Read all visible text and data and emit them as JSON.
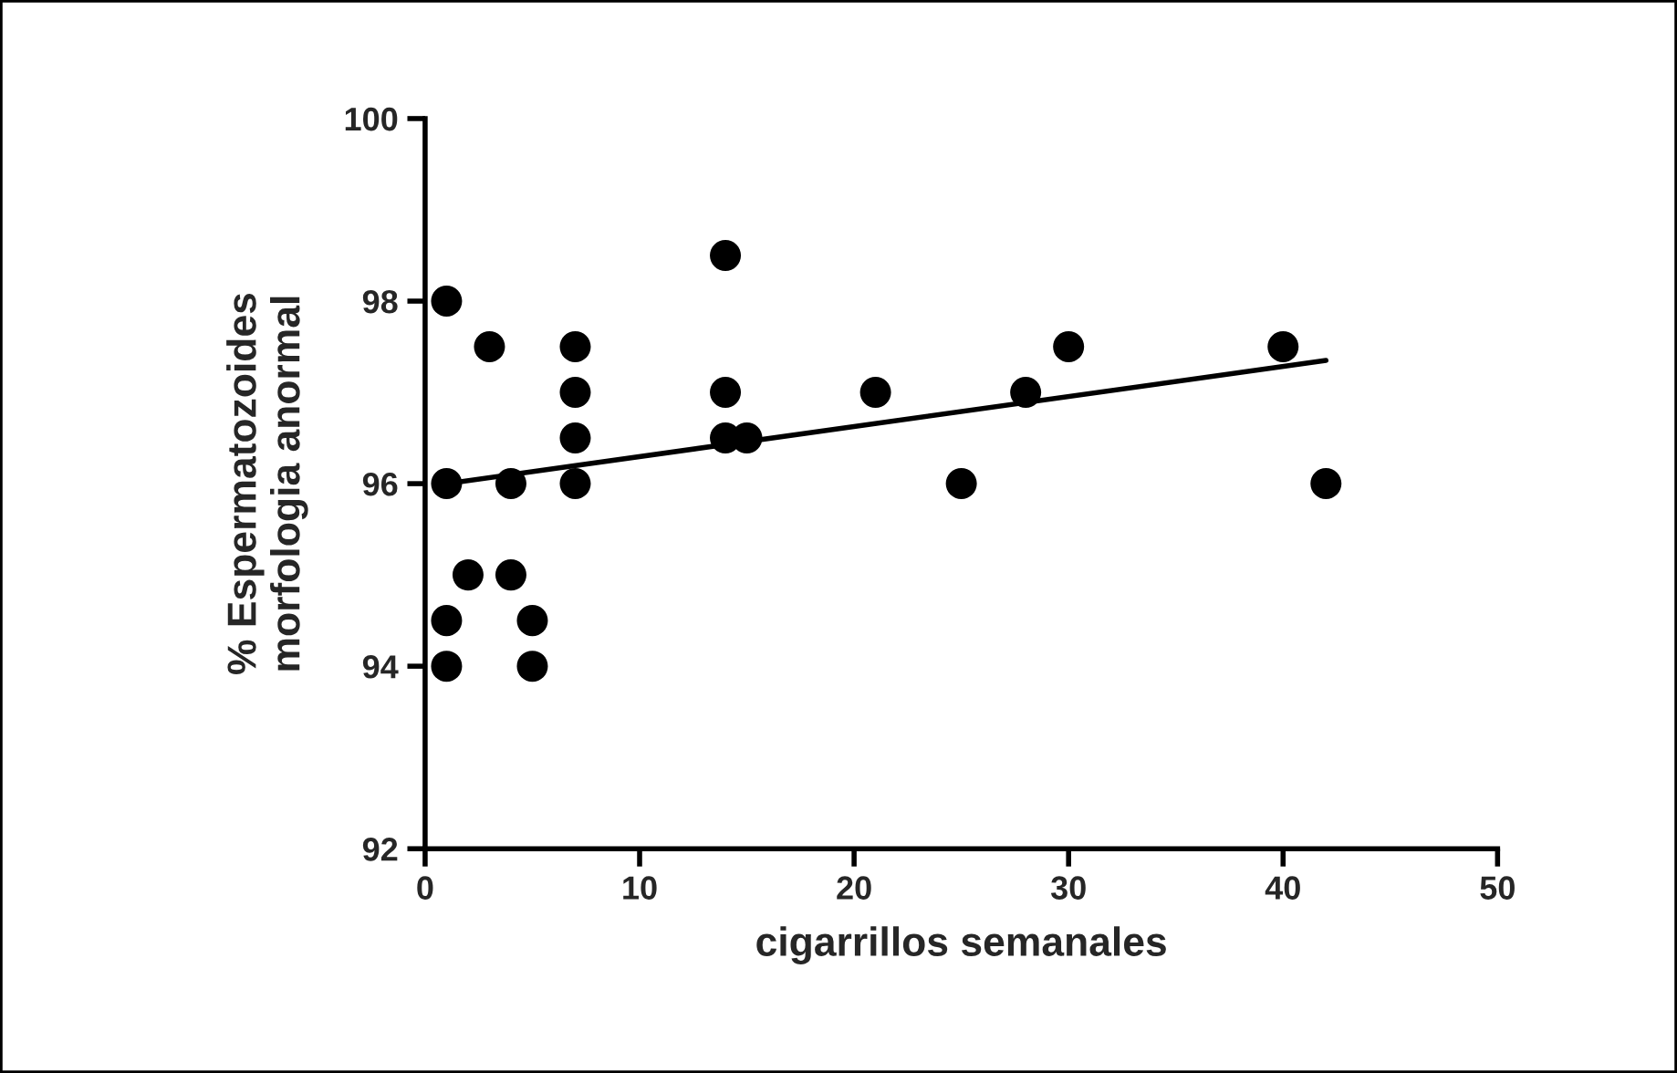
{
  "chart_data": {
    "type": "scatter",
    "xlabel": "cigarrillos semanales",
    "ylabel": "% Espermatozoides\nmorfologia anormal",
    "xlim": [
      0,
      50
    ],
    "xticks": [
      0,
      10,
      20,
      30,
      40,
      50
    ],
    "ylim": [
      92,
      100
    ],
    "yticks": [
      92,
      94,
      96,
      98,
      100
    ],
    "grid": false,
    "series": [
      {
        "color": "#000000",
        "marker": "circle",
        "x": [
          1,
          1,
          1,
          1,
          2,
          3,
          4,
          4,
          5,
          5,
          7,
          7,
          7,
          7,
          14,
          14,
          14,
          15,
          21,
          25,
          28,
          30,
          40,
          42
        ],
        "values": [
          98,
          96,
          94.5,
          94,
          95,
          97.5,
          96,
          95,
          94.5,
          94,
          97.5,
          97,
          96.5,
          96,
          98.5,
          97,
          96.5,
          96.5,
          97,
          96,
          97,
          97.5,
          97.5,
          96
        ]
      },
      {
        "type": "line",
        "color": "#000000",
        "x": [
          1,
          42
        ],
        "values": [
          96.0,
          97.35
        ]
      }
    ]
  }
}
